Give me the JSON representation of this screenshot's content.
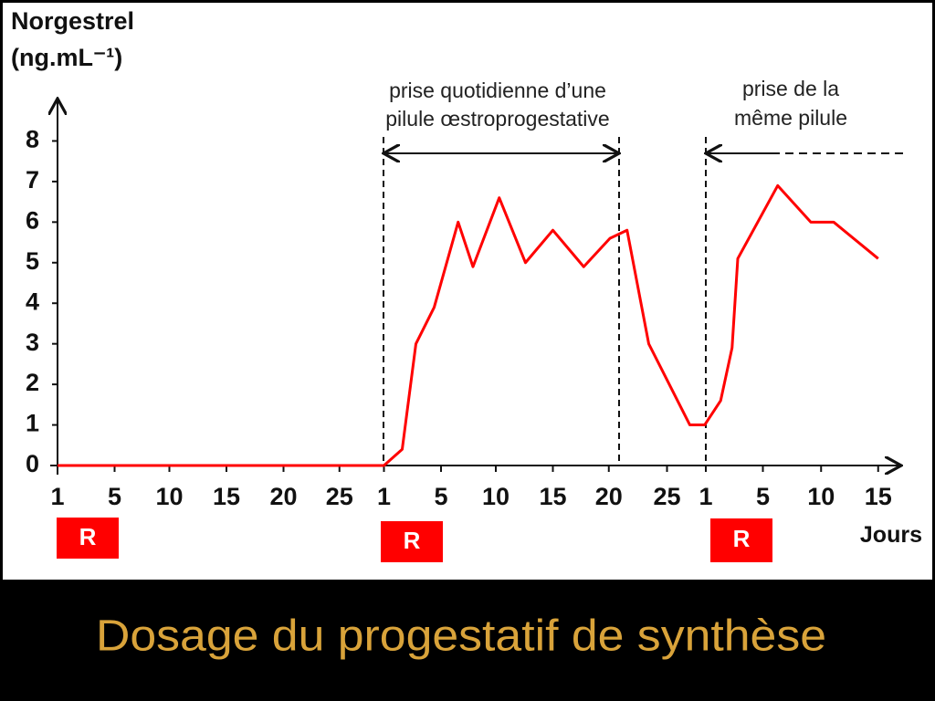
{
  "chart_data": {
    "type": "line",
    "y_label": [
      "Norgestrel",
      "(ng.mL⁻¹)"
    ],
    "x_label": "Jours",
    "annotations": [
      [
        "prise quotidienne d’une",
        "pilule œstroprogestative"
      ],
      [
        "prise de la",
        "même pilule"
      ]
    ],
    "markers": [
      "R",
      "R",
      "R"
    ],
    "x": [
      0,
      28.6,
      30.2,
      31.4,
      33,
      35.1,
      36.4,
      38.7,
      41,
      43.4,
      46.1,
      48.4,
      49.9,
      51.8,
      55.4,
      56.7,
      58.1,
      59.1,
      59.6,
      63.1,
      66,
      68,
      71.9
    ],
    "series": [
      {
        "color": "#ff0000",
        "values": [
          0,
          0,
          0.4,
          3.0,
          3.9,
          6.0,
          4.9,
          6.6,
          5.0,
          5.8,
          4.9,
          5.6,
          5.8,
          3.0,
          1.0,
          1.0,
          1.6,
          2.9,
          5.1,
          6.9,
          6.0,
          6.0,
          5.1
        ]
      }
    ],
    "xlim": [
      0,
      74
    ],
    "ylim": [
      0,
      9
    ],
    "yticks": [
      0,
      1,
      2,
      3,
      4,
      5,
      6,
      7,
      8
    ],
    "xticks": [
      {
        "value": 0,
        "label": "1"
      },
      {
        "value": 5,
        "label": "5"
      },
      {
        "value": 9.8,
        "label": "10"
      },
      {
        "value": 14.8,
        "label": "15"
      },
      {
        "value": 19.8,
        "label": "20"
      },
      {
        "value": 24.7,
        "label": "25"
      },
      {
        "value": 28.6,
        "label": "1"
      },
      {
        "value": 33.6,
        "label": "5"
      },
      {
        "value": 38.4,
        "label": "10"
      },
      {
        "value": 43.4,
        "label": "15"
      },
      {
        "value": 48.3,
        "label": "20"
      },
      {
        "value": 53.4,
        "label": "25"
      },
      {
        "value": 56.8,
        "label": "1"
      },
      {
        "value": 61.8,
        "label": "5"
      },
      {
        "value": 66.9,
        "label": "10"
      },
      {
        "value": 71.9,
        "label": "15"
      }
    ]
  },
  "slide_title": "Dosage du progestatif de synthèse"
}
